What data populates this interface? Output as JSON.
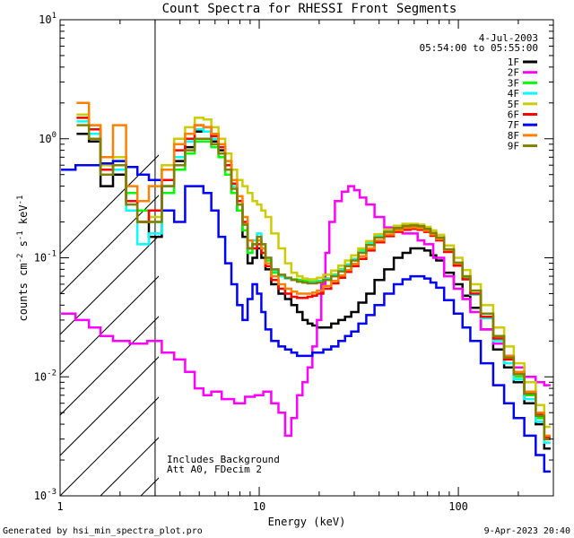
{
  "chart_data": {
    "type": "line",
    "title": "Count Spectra for RHESSI Front Segments",
    "xlabel": "Energy (keV)",
    "ylabel_parts": {
      "base": "counts cm",
      "exp1": "-2",
      "mid": " s",
      "exp2": "-1",
      "unit": " keV",
      "exp3": "-1"
    },
    "x_scale": "log",
    "y_scale": "log",
    "xlim": [
      1,
      300
    ],
    "ylim": [
      0.001,
      10
    ],
    "x_ticks": [
      {
        "value": 1,
        "label": "1"
      },
      {
        "value": 10,
        "label": "10"
      },
      {
        "value": 100,
        "label": "100"
      }
    ],
    "y_ticks": [
      {
        "value": 0.001,
        "base": "10",
        "exp": "-3"
      },
      {
        "value": 0.01,
        "base": "10",
        "exp": "-2"
      },
      {
        "value": 0.1,
        "base": "10",
        "exp": "-1"
      },
      {
        "value": 1,
        "base": "10",
        "exp": "0"
      },
      {
        "value": 10,
        "base": "10",
        "exp": "1"
      }
    ],
    "hatched_region": [
      1,
      3
    ],
    "date": "4-Jul-2003",
    "time_range": "05:54:00 to 05:55:00",
    "annotations": [
      "Includes Background",
      "Att A0, FDecim 2"
    ],
    "footer_left": "Generated by hsi_min_spectra_plot.pro",
    "footer_right": "9-Apr-2023 20:40",
    "series": [
      {
        "name": "1F",
        "color": "#000000",
        "x": [
          1.3,
          1.5,
          1.7,
          2.0,
          2.3,
          2.6,
          3.0,
          3.5,
          4.0,
          4.5,
          5.0,
          5.5,
          6.0,
          6.5,
          7.0,
          7.5,
          8.0,
          8.5,
          9.0,
          9.5,
          10.0,
          10.5,
          11.0,
          12.0,
          13.0,
          14.0,
          15.0,
          16.0,
          17.0,
          18.0,
          19.0,
          20.0,
          22.0,
          24.0,
          26.0,
          28.0,
          30.0,
          33.0,
          36.0,
          40.0,
          45.0,
          50.0,
          55.0,
          60.0,
          65.0,
          70.0,
          75.0,
          80.0,
          90.0,
          100.0,
          110.0,
          120.0,
          140.0,
          160.0,
          180.0,
          200.0,
          230.0,
          260.0,
          280.0
        ],
        "y": [
          1.1,
          0.95,
          0.4,
          0.5,
          0.3,
          0.2,
          0.15,
          0.4,
          0.65,
          0.85,
          1.15,
          1.15,
          0.95,
          0.8,
          0.55,
          0.35,
          0.25,
          0.15,
          0.09,
          0.1,
          0.12,
          0.1,
          0.08,
          0.06,
          0.05,
          0.045,
          0.04,
          0.035,
          0.03,
          0.028,
          0.027,
          0.026,
          0.026,
          0.028,
          0.03,
          0.032,
          0.035,
          0.042,
          0.05,
          0.065,
          0.08,
          0.1,
          0.11,
          0.12,
          0.12,
          0.115,
          0.105,
          0.095,
          0.075,
          0.06,
          0.048,
          0.038,
          0.025,
          0.017,
          0.012,
          0.009,
          0.006,
          0.004,
          0.0025
        ]
      },
      {
        "name": "2F",
        "color": "#ff00ff",
        "x": [
          1.1,
          1.3,
          1.5,
          1.7,
          2.0,
          2.5,
          3.0,
          3.5,
          4.0,
          4.5,
          5.0,
          5.5,
          6.0,
          7.0,
          8.0,
          9.0,
          10.0,
          11.0,
          12.0,
          13.0,
          14.0,
          15.0,
          16.0,
          17.0,
          18.0,
          19.0,
          20.0,
          21.0,
          22.0,
          23.0,
          25.0,
          27.0,
          29.0,
          31.0,
          33.0,
          36.0,
          40.0,
          45.0,
          50.0,
          55.0,
          60.0,
          65.0,
          70.0,
          80.0,
          90.0,
          100.0,
          110.0,
          120.0,
          140.0,
          160.0,
          180.0,
          200.0,
          230.0,
          260.0,
          280.0
        ],
        "y": [
          0.034,
          0.03,
          0.026,
          0.022,
          0.02,
          0.019,
          0.02,
          0.016,
          0.014,
          0.011,
          0.008,
          0.007,
          0.0075,
          0.0065,
          0.006,
          0.0068,
          0.007,
          0.0075,
          0.006,
          0.005,
          0.0032,
          0.0045,
          0.007,
          0.009,
          0.012,
          0.018,
          0.03,
          0.06,
          0.11,
          0.2,
          0.3,
          0.36,
          0.4,
          0.37,
          0.32,
          0.28,
          0.22,
          0.18,
          0.17,
          0.16,
          0.16,
          0.14,
          0.13,
          0.1,
          0.07,
          0.055,
          0.045,
          0.035,
          0.025,
          0.019,
          0.015,
          0.012,
          0.01,
          0.009,
          0.0085
        ]
      },
      {
        "name": "3F",
        "color": "#00ff00",
        "x": [
          1.3,
          1.5,
          1.7,
          2.0,
          2.3,
          2.6,
          3.0,
          3.5,
          4.0,
          4.5,
          5.0,
          5.5,
          6.0,
          6.5,
          7.0,
          7.5,
          8.0,
          8.5,
          9.0,
          9.5,
          10.0,
          10.5,
          11.0,
          12.0,
          13.0,
          14.0,
          15.0,
          16.0,
          17.0,
          18.0,
          19.0,
          20.0,
          22.0,
          24.0,
          26.0,
          28.0,
          30.0,
          33.0,
          36.0,
          40.0,
          45.0,
          50.0,
          55.0,
          60.0,
          65.0,
          70.0,
          75.0,
          80.0,
          90.0,
          100.0,
          110.0,
          120.0,
          140.0,
          160.0,
          180.0,
          200.0,
          230.0,
          260.0,
          280.0
        ],
        "y": [
          1.5,
          1.2,
          0.55,
          0.65,
          0.35,
          0.25,
          0.2,
          0.35,
          0.55,
          0.75,
          0.95,
          0.95,
          0.85,
          0.7,
          0.5,
          0.35,
          0.25,
          0.17,
          0.11,
          0.13,
          0.14,
          0.12,
          0.095,
          0.075,
          0.07,
          0.068,
          0.066,
          0.065,
          0.064,
          0.063,
          0.063,
          0.064,
          0.067,
          0.072,
          0.08,
          0.088,
          0.098,
          0.115,
          0.135,
          0.155,
          0.17,
          0.185,
          0.19,
          0.19,
          0.185,
          0.175,
          0.16,
          0.145,
          0.115,
          0.088,
          0.067,
          0.05,
          0.032,
          0.021,
          0.014,
          0.01,
          0.007,
          0.0045,
          0.003
        ]
      },
      {
        "name": "4F",
        "color": "#00ffff",
        "x": [
          1.3,
          1.5,
          1.7,
          2.0,
          2.3,
          2.6,
          3.0,
          3.5,
          4.0,
          4.5,
          5.0,
          5.5,
          6.0,
          6.5,
          7.0,
          7.5,
          8.0,
          8.5,
          9.0,
          9.5,
          10.0,
          10.5,
          11.0,
          12.0,
          13.0,
          14.0,
          15.0,
          16.0,
          17.0,
          18.0,
          19.0,
          20.0,
          22.0,
          24.0,
          26.0,
          28.0,
          30.0,
          33.0,
          36.0,
          40.0,
          45.0,
          50.0,
          55.0,
          60.0,
          65.0,
          70.0,
          75.0,
          80.0,
          90.0,
          100.0,
          110.0,
          120.0,
          140.0,
          160.0,
          180.0,
          200.0,
          230.0,
          260.0,
          280.0
        ],
        "y": [
          1.4,
          1.1,
          0.5,
          0.55,
          0.25,
          0.13,
          0.16,
          0.4,
          0.7,
          0.95,
          1.2,
          1.15,
          1.0,
          0.85,
          0.6,
          0.4,
          0.28,
          0.19,
          0.12,
          0.14,
          0.16,
          0.13,
          0.1,
          0.078,
          0.07,
          0.067,
          0.065,
          0.063,
          0.062,
          0.062,
          0.062,
          0.063,
          0.066,
          0.071,
          0.079,
          0.087,
          0.097,
          0.113,
          0.132,
          0.152,
          0.168,
          0.182,
          0.188,
          0.188,
          0.183,
          0.172,
          0.158,
          0.143,
          0.113,
          0.086,
          0.066,
          0.049,
          0.031,
          0.02,
          0.013,
          0.0095,
          0.0065,
          0.0042,
          0.0028
        ]
      },
      {
        "name": "5F",
        "color": "#cccc00",
        "x": [
          1.3,
          1.5,
          1.7,
          2.0,
          2.3,
          2.6,
          3.0,
          3.5,
          4.0,
          4.5,
          5.0,
          5.5,
          6.0,
          6.5,
          7.0,
          7.5,
          8.0,
          8.5,
          9.0,
          9.5,
          10.0,
          10.5,
          11.0,
          12.0,
          13.0,
          14.0,
          15.0,
          16.0,
          17.0,
          18.0,
          19.0,
          20.0,
          22.0,
          24.0,
          26.0,
          28.0,
          30.0,
          33.0,
          36.0,
          40.0,
          45.0,
          50.0,
          55.0,
          60.0,
          65.0,
          70.0,
          75.0,
          80.0,
          90.0,
          100.0,
          110.0,
          120.0,
          140.0,
          160.0,
          180.0,
          200.0,
          230.0,
          260.0,
          280.0
        ],
        "y": [
          1.6,
          1.3,
          0.6,
          0.7,
          0.3,
          0.2,
          0.22,
          0.6,
          1.0,
          1.25,
          1.5,
          1.45,
          1.25,
          1.0,
          0.75,
          0.55,
          0.45,
          0.4,
          0.35,
          0.3,
          0.28,
          0.25,
          0.22,
          0.16,
          0.12,
          0.09,
          0.075,
          0.07,
          0.067,
          0.066,
          0.066,
          0.068,
          0.072,
          0.078,
          0.086,
          0.095,
          0.105,
          0.12,
          0.138,
          0.158,
          0.173,
          0.186,
          0.193,
          0.193,
          0.19,
          0.182,
          0.17,
          0.156,
          0.127,
          0.1,
          0.079,
          0.06,
          0.04,
          0.026,
          0.018,
          0.013,
          0.009,
          0.0058,
          0.0038
        ]
      },
      {
        "name": "6F",
        "color": "#ff0000",
        "x": [
          1.3,
          1.5,
          1.7,
          2.0,
          2.3,
          2.6,
          3.0,
          3.5,
          4.0,
          4.5,
          5.0,
          5.5,
          6.0,
          6.5,
          7.0,
          7.5,
          8.0,
          8.5,
          9.0,
          9.5,
          10.0,
          10.5,
          11.0,
          12.0,
          13.0,
          14.0,
          15.0,
          16.0,
          17.0,
          18.0,
          19.0,
          20.0,
          22.0,
          24.0,
          26.0,
          28.0,
          30.0,
          33.0,
          36.0,
          40.0,
          45.0,
          50.0,
          55.0,
          60.0,
          65.0,
          70.0,
          75.0,
          80.0,
          90.0,
          100.0,
          110.0,
          120.0,
          140.0,
          160.0,
          180.0,
          200.0,
          230.0,
          260.0,
          280.0
        ],
        "y": [
          1.5,
          1.2,
          0.55,
          0.6,
          0.3,
          0.2,
          0.25,
          0.45,
          0.8,
          1.0,
          1.3,
          1.25,
          1.05,
          0.85,
          0.6,
          0.42,
          0.3,
          0.2,
          0.12,
          0.12,
          0.13,
          0.11,
          0.085,
          0.065,
          0.055,
          0.05,
          0.047,
          0.046,
          0.046,
          0.047,
          0.048,
          0.05,
          0.055,
          0.061,
          0.068,
          0.076,
          0.085,
          0.098,
          0.115,
          0.135,
          0.152,
          0.165,
          0.172,
          0.175,
          0.172,
          0.165,
          0.153,
          0.14,
          0.112,
          0.086,
          0.066,
          0.05,
          0.032,
          0.021,
          0.014,
          0.0105,
          0.0072,
          0.0048,
          0.0031
        ]
      },
      {
        "name": "7F",
        "color": "#0000ff",
        "x": [
          1.1,
          1.3,
          1.5,
          1.7,
          2.0,
          2.3,
          2.6,
          3.0,
          3.5,
          4.0,
          4.5,
          5.0,
          5.5,
          6.0,
          6.5,
          7.0,
          7.5,
          8.0,
          8.5,
          9.0,
          9.5,
          10.0,
          10.5,
          11.0,
          12.0,
          13.0,
          14.0,
          15.0,
          16.0,
          17.0,
          18.0,
          19.0,
          20.0,
          22.0,
          24.0,
          26.0,
          28.0,
          30.0,
          33.0,
          36.0,
          40.0,
          45.0,
          50.0,
          55.0,
          60.0,
          65.0,
          70.0,
          75.0,
          80.0,
          90.0,
          100.0,
          110.0,
          120.0,
          140.0,
          160.0,
          180.0,
          200.0,
          230.0,
          260.0,
          280.0
        ],
        "y": [
          0.55,
          0.6,
          0.6,
          0.62,
          0.65,
          0.58,
          0.5,
          0.45,
          0.25,
          0.2,
          0.4,
          0.4,
          0.35,
          0.25,
          0.15,
          0.09,
          0.06,
          0.04,
          0.03,
          0.045,
          0.06,
          0.05,
          0.035,
          0.025,
          0.02,
          0.018,
          0.017,
          0.016,
          0.015,
          0.015,
          0.015,
          0.016,
          0.016,
          0.017,
          0.018,
          0.02,
          0.022,
          0.024,
          0.028,
          0.033,
          0.04,
          0.05,
          0.06,
          0.066,
          0.07,
          0.07,
          0.067,
          0.062,
          0.056,
          0.044,
          0.034,
          0.026,
          0.02,
          0.013,
          0.0085,
          0.006,
          0.0045,
          0.0032,
          0.0022,
          0.0016
        ]
      },
      {
        "name": "8F",
        "color": "#ff8000",
        "x": [
          1.3,
          1.5,
          1.7,
          2.0,
          2.3,
          2.6,
          3.0,
          3.5,
          4.0,
          4.5,
          5.0,
          5.5,
          6.0,
          6.5,
          7.0,
          7.5,
          8.0,
          8.5,
          9.0,
          9.5,
          10.0,
          10.5,
          11.0,
          12.0,
          13.0,
          14.0,
          15.0,
          16.0,
          17.0,
          18.0,
          19.0,
          20.0,
          22.0,
          24.0,
          26.0,
          28.0,
          30.0,
          33.0,
          36.0,
          40.0,
          45.0,
          50.0,
          55.0,
          60.0,
          65.0,
          70.0,
          75.0,
          80.0,
          90.0,
          100.0,
          110.0,
          120.0,
          140.0,
          160.0,
          180.0,
          200.0,
          230.0,
          260.0,
          280.0
        ],
        "y": [
          2.0,
          1.3,
          0.7,
          1.3,
          0.4,
          0.3,
          0.4,
          0.55,
          0.9,
          1.1,
          1.3,
          1.25,
          1.1,
          0.9,
          0.65,
          0.45,
          0.33,
          0.22,
          0.14,
          0.13,
          0.14,
          0.12,
          0.09,
          0.07,
          0.06,
          0.055,
          0.052,
          0.05,
          0.05,
          0.05,
          0.051,
          0.053,
          0.058,
          0.064,
          0.071,
          0.079,
          0.089,
          0.103,
          0.12,
          0.14,
          0.157,
          0.17,
          0.178,
          0.18,
          0.177,
          0.169,
          0.157,
          0.144,
          0.116,
          0.09,
          0.07,
          0.053,
          0.034,
          0.022,
          0.015,
          0.011,
          0.0075,
          0.005,
          0.0032
        ]
      },
      {
        "name": "9F",
        "color": "#808000",
        "x": [
          1.3,
          1.5,
          1.7,
          2.0,
          2.3,
          2.6,
          3.0,
          3.5,
          4.0,
          4.5,
          5.0,
          5.5,
          6.0,
          6.5,
          7.0,
          7.5,
          8.0,
          8.5,
          9.0,
          9.5,
          10.0,
          10.5,
          11.0,
          12.0,
          13.0,
          14.0,
          15.0,
          16.0,
          17.0,
          18.0,
          19.0,
          20.0,
          22.0,
          24.0,
          26.0,
          28.0,
          30.0,
          33.0,
          36.0,
          40.0,
          45.0,
          50.0,
          55.0,
          60.0,
          65.0,
          70.0,
          75.0,
          80.0,
          90.0,
          100.0,
          110.0,
          120.0,
          140.0,
          160.0,
          180.0,
          200.0,
          230.0,
          260.0,
          280.0
        ],
        "y": [
          1.3,
          1.0,
          0.5,
          0.6,
          0.28,
          0.2,
          0.2,
          0.4,
          0.6,
          0.8,
          1.0,
          1.0,
          0.9,
          0.75,
          0.55,
          0.38,
          0.28,
          0.19,
          0.12,
          0.13,
          0.15,
          0.13,
          0.1,
          0.08,
          0.072,
          0.068,
          0.065,
          0.063,
          0.062,
          0.061,
          0.061,
          0.062,
          0.065,
          0.07,
          0.077,
          0.085,
          0.095,
          0.11,
          0.128,
          0.148,
          0.165,
          0.178,
          0.185,
          0.187,
          0.184,
          0.175,
          0.162,
          0.148,
          0.118,
          0.091,
          0.07,
          0.053,
          0.034,
          0.022,
          0.0145,
          0.0105,
          0.0072,
          0.0047,
          0.003
        ]
      }
    ]
  }
}
